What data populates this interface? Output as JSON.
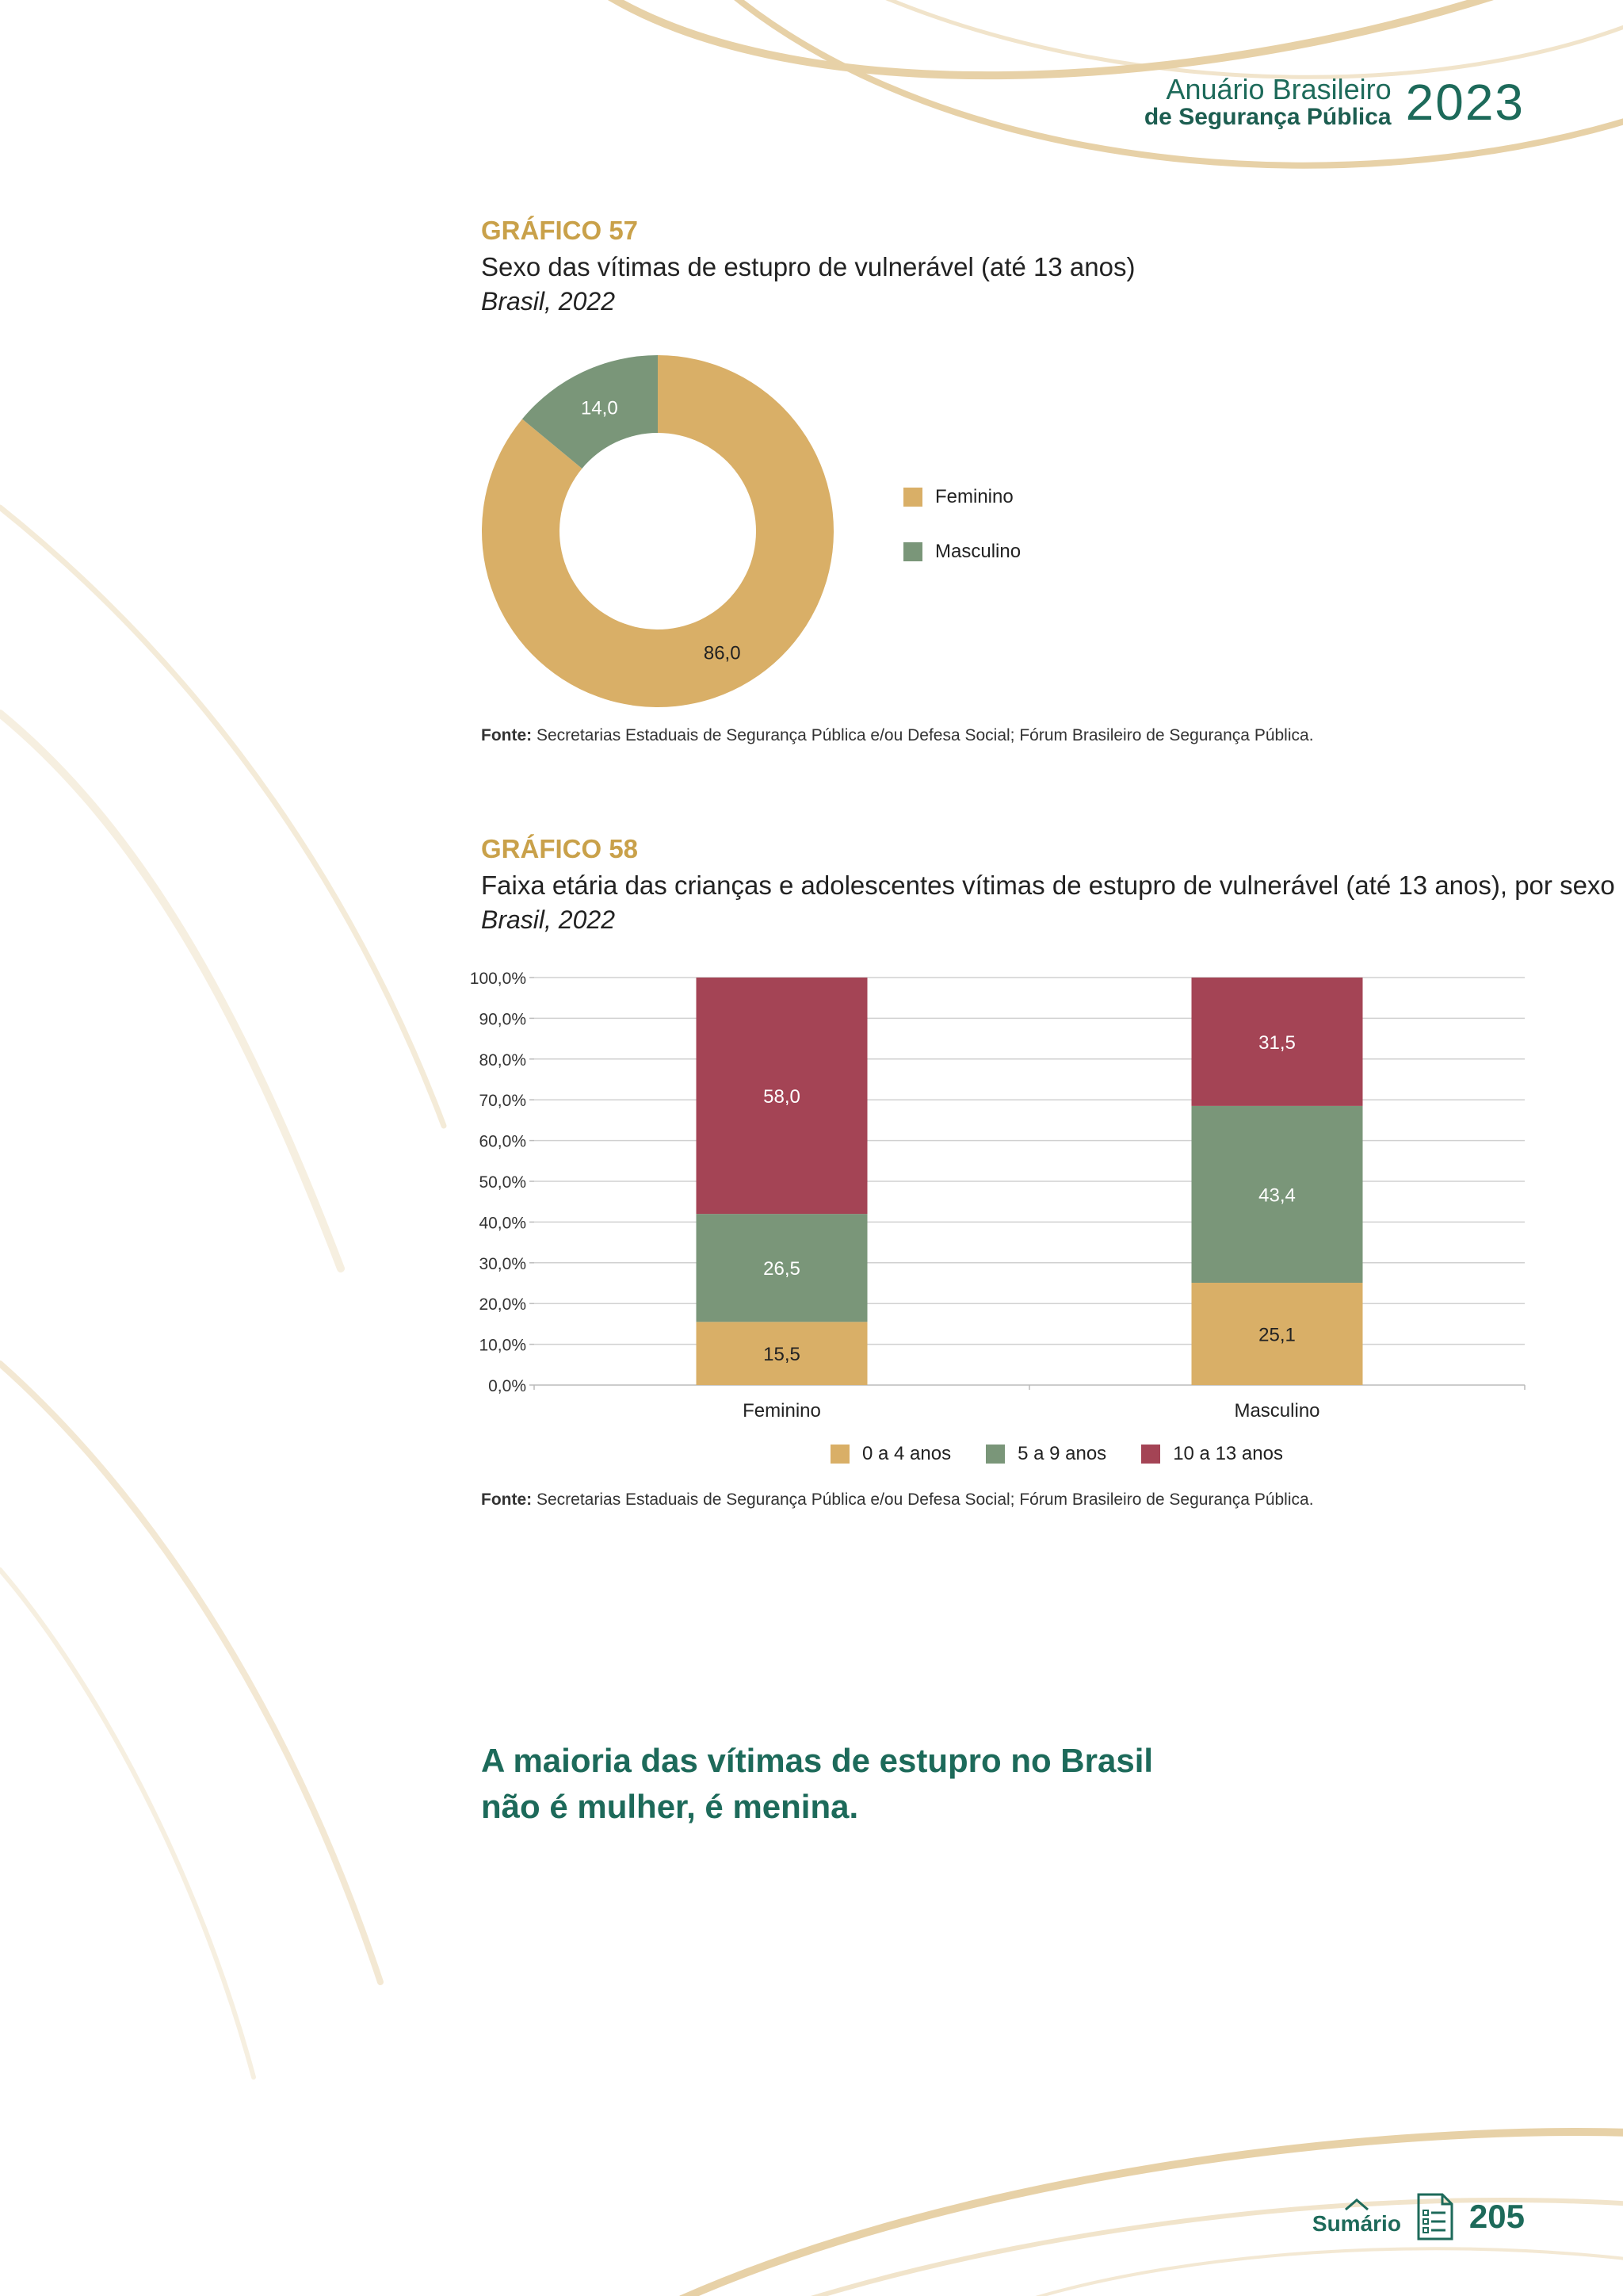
{
  "header": {
    "brand_line1": "Anuário Brasileiro",
    "brand_line2": "de Segurança Pública",
    "year": "2023"
  },
  "graf57": {
    "label": "GRÁFICO 57",
    "title": "Sexo das vítimas de estupro de vulnerável (até 13 anos)",
    "subtitle": "Brasil, 2022",
    "source_bold": "Fonte:",
    "source_text": " Secretarias Estaduais de Segurança Pública e/ou Defesa Social; Fórum Brasileiro de Segurança Pública.",
    "legend": [
      "Feminino",
      "Masculino"
    ]
  },
  "graf58": {
    "label": "GRÁFICO 58",
    "title": "Faixa etária das crianças e adolescentes vítimas de estupro de vulnerável (até 13 anos), por sexo",
    "subtitle": "Brasil, 2022",
    "source_bold": "Fonte:",
    "source_text": " Secretarias Estaduais de Segurança Pública e/ou Defesa Social; Fórum Brasileiro de Segurança Pública."
  },
  "chart_data": [
    {
      "type": "pie",
      "title": "Sexo das vítimas de estupro de vulnerável (até 13 anos)",
      "subtitle": "Brasil, 2022",
      "donut": true,
      "categories": [
        "Feminino",
        "Masculino"
      ],
      "values": [
        86.0,
        14.0
      ],
      "labels": [
        "86,0",
        "14,0"
      ],
      "colors": [
        "#d9af67",
        "#7a9679"
      ],
      "legend": "right"
    },
    {
      "type": "bar",
      "stacked": true,
      "title": "Faixa etária das crianças e adolescentes vítimas de estupro de vulnerável (até 13 anos), por sexo",
      "subtitle": "Brasil, 2022",
      "categories": [
        "Feminino",
        "Masculino"
      ],
      "series": [
        {
          "name": "0 a 4 anos",
          "values": [
            15.5,
            25.1
          ],
          "labels": [
            "15,5",
            "25,1"
          ],
          "color": "#d9af67"
        },
        {
          "name": "5 a 9 anos",
          "values": [
            26.5,
            43.4
          ],
          "labels": [
            "26,5",
            "43,4"
          ],
          "color": "#7a9679"
        },
        {
          "name": "10 a 13 anos",
          "values": [
            58.0,
            31.5
          ],
          "labels": [
            "58,0",
            "31,5"
          ],
          "color": "#a44455"
        }
      ],
      "y_ticks": [
        "0,0%",
        "10,0%",
        "20,0%",
        "30,0%",
        "40,0%",
        "50,0%",
        "60,0%",
        "70,0%",
        "80,0%",
        "90,0%",
        "100,0%"
      ],
      "ylim": [
        0,
        100
      ],
      "grid": true,
      "legend": "bottom"
    }
  ],
  "quote": {
    "line1": "A maioria das vítimas de estupro no Brasil",
    "line2": "não é mulher, é menina."
  },
  "footer": {
    "sumario": "Sumário",
    "page": "205"
  }
}
